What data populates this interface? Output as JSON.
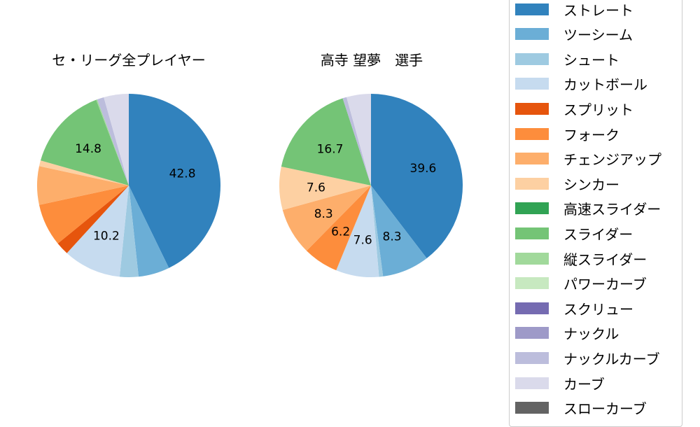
{
  "chart_data": [
    {
      "type": "pie",
      "title": "セ・リーグ全プレイヤー",
      "start_angle": "90deg (12 o'clock), clockwise",
      "categories": [
        "ストレート",
        "ツーシーム",
        "シュート",
        "カットボール",
        "スプリット",
        "フォーク",
        "チェンジアップ",
        "シンカー",
        "高速スライダー",
        "スライダー",
        "縦スライダー",
        "パワーカーブ",
        "スクリュー",
        "ナックル",
        "ナックルカーブ",
        "カーブ",
        "スローカーブ"
      ],
      "values": [
        42.8,
        5.5,
        3.3,
        10.2,
        2.3,
        7.5,
        6.8,
        1.0,
        0,
        14.8,
        0.2,
        0,
        0,
        0,
        1.2,
        4.4,
        0
      ],
      "labels_shown": {
        "ストレート": "42.8",
        "カットボール": "10.2",
        "スライダー": "14.8"
      }
    },
    {
      "type": "pie",
      "title": "高寺 望夢　選手",
      "start_angle": "90deg (12 o'clock), clockwise",
      "categories": [
        "ストレート",
        "ツーシーム",
        "シュート",
        "カットボール",
        "スプリット",
        "フォーク",
        "チェンジアップ",
        "シンカー",
        "高速スライダー",
        "スライダー",
        "縦スライダー",
        "パワーカーブ",
        "スクリュー",
        "ナックル",
        "ナックルカーブ",
        "カーブ",
        "スローカーブ"
      ],
      "values": [
        39.6,
        8.3,
        0.7,
        7.6,
        0,
        6.2,
        8.3,
        7.6,
        0,
        16.7,
        0,
        0,
        0,
        0,
        0.7,
        4.3,
        0
      ],
      "labels_shown": {
        "ストレート": "39.6",
        "ツーシーム": "8.3",
        "カットボール": "7.6",
        "フォーク": "6.2",
        "チェンジアップ": "8.3",
        "シンカー": "7.6",
        "スライダー": "16.7"
      }
    }
  ],
  "titles": {
    "left": "セ・リーグ全プレイヤー",
    "right": "高寺 望夢　選手"
  },
  "legend": {
    "items": [
      {
        "label": "ストレート",
        "color": "#3182bd"
      },
      {
        "label": "ツーシーム",
        "color": "#6baed6"
      },
      {
        "label": "シュート",
        "color": "#9ecae1"
      },
      {
        "label": "カットボール",
        "color": "#c6dbef"
      },
      {
        "label": "スプリット",
        "color": "#e6550d"
      },
      {
        "label": "フォーク",
        "color": "#fd8d3c"
      },
      {
        "label": "チェンジアップ",
        "color": "#fdae6b"
      },
      {
        "label": "シンカー",
        "color": "#fdd0a2"
      },
      {
        "label": "高速スライダー",
        "color": "#31a354"
      },
      {
        "label": "スライダー",
        "color": "#74c476"
      },
      {
        "label": "縦スライダー",
        "color": "#a1d99b"
      },
      {
        "label": "パワーカーブ",
        "color": "#c7e9c0"
      },
      {
        "label": "スクリュー",
        "color": "#756bb1"
      },
      {
        "label": "ナックル",
        "color": "#9e9ac8"
      },
      {
        "label": "ナックルカーブ",
        "color": "#bcbddc"
      },
      {
        "label": "カーブ",
        "color": "#dadaeb"
      },
      {
        "label": "スローカーブ",
        "color": "#636363"
      }
    ]
  }
}
